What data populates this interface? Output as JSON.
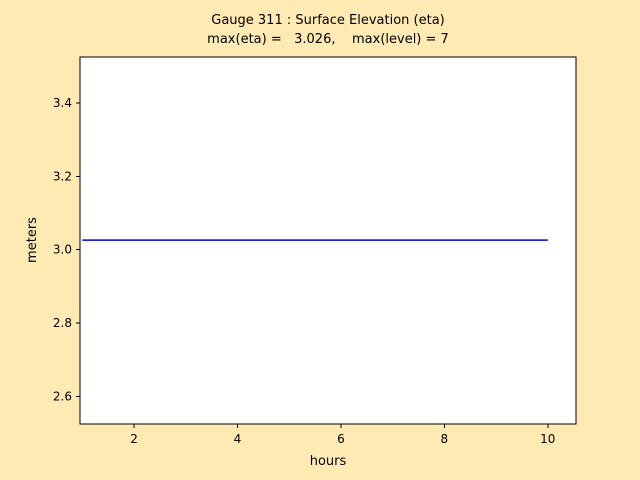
{
  "figure": {
    "background_color": "#ffeab3",
    "plot_background_color": "#ffffff",
    "axis_color": "#000000",
    "tick_color": "#000000"
  },
  "chart_data": {
    "type": "line",
    "title": "Gauge 311 : Surface Elevation (eta)",
    "subtitle": "max(eta) =   3.026,    max(level) = 7",
    "xlabel": "hours",
    "ylabel": "meters",
    "xlim": [
      0.955,
      10.545
    ],
    "ylim": [
      2.525,
      3.525
    ],
    "xticks": [
      2,
      4,
      6,
      8,
      10
    ],
    "xtick_labels": [
      "2",
      "4",
      "6",
      "8",
      "10"
    ],
    "yticks": [
      2.6,
      2.8,
      3.0,
      3.2,
      3.4
    ],
    "ytick_labels": [
      "2.6",
      "2.8",
      "3.0",
      "3.2",
      "3.4"
    ],
    "grid": false,
    "legend": null,
    "annotations": {
      "max_eta": 3.026,
      "max_level": 7,
      "gauge_number": 311
    },
    "series": [
      {
        "name": "eta",
        "color": "#0000cc",
        "x": [
          1.0,
          10.0
        ],
        "y": [
          3.026,
          3.026
        ]
      }
    ]
  }
}
